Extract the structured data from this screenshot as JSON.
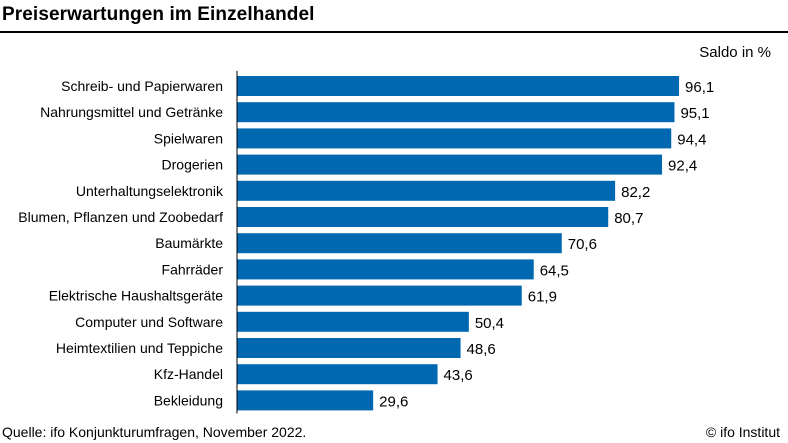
{
  "title": "Preiserwartungen im Einzelhandel",
  "unit_label": "Saldo in %",
  "source": "Quelle: ifo Konjunkturumfragen, November 2022.",
  "copyright": "© ifo Institut",
  "colors": {
    "bar": "#0067b1",
    "axis": "#000000"
  },
  "chart_data": {
    "type": "bar",
    "orientation": "horizontal",
    "categories": [
      "Schreib- und Papierwaren",
      "Nahrungsmittel und Getränke",
      "Spielwaren",
      "Drogerien",
      "Unterhaltungselektronik",
      "Blumen, Pflanzen und Zoobedarf",
      "Baumärkte",
      "Fahrräder",
      "Elektrische Haushaltsgeräte",
      "Computer und Software",
      "Heimtextilien und Teppiche",
      "Kfz-Handel",
      "Bekleidung"
    ],
    "values": [
      96.1,
      95.1,
      94.4,
      92.4,
      82.2,
      80.7,
      70.6,
      64.5,
      61.9,
      50.4,
      48.6,
      43.6,
      29.6
    ],
    "value_labels": [
      "96,1",
      "95,1",
      "94,4",
      "92,4",
      "82,2",
      "80,7",
      "70,6",
      "64,5",
      "61,9",
      "50,4",
      "48,6",
      "43,6",
      "29,6"
    ],
    "xlim": [
      0,
      100
    ]
  }
}
